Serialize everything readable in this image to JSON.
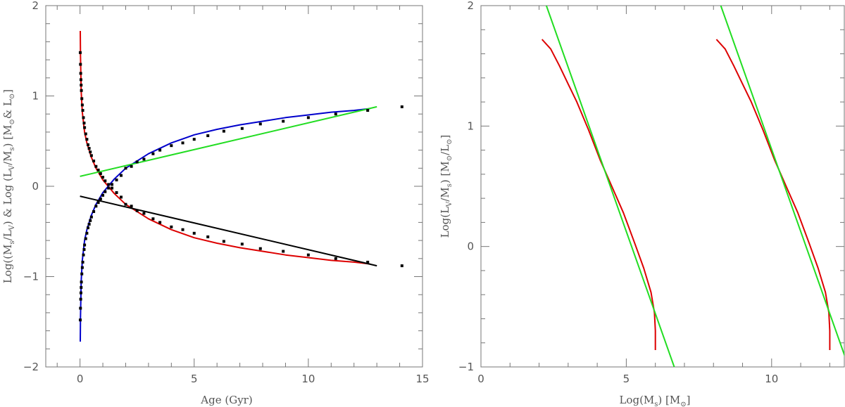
{
  "chart_data": [
    {
      "type": "line",
      "xlabel": "Age (Gyr)",
      "ylabel_parts": [
        "Log((M",
        "s",
        "/L",
        "V",
        ")   &   Log  (L",
        "V",
        "/M",
        "s",
        ")   [M",
        "⊙",
        "& L",
        "⊙",
        "]"
      ],
      "xlim": [
        -1.5,
        15
      ],
      "ylim": [
        -2,
        2
      ],
      "xticks": [
        0,
        5,
        10,
        15
      ],
      "yticks": [
        -2,
        -1,
        0,
        1,
        2
      ],
      "grid": false,
      "series": [
        {
          "color": "#dd0000",
          "x": [
            0.01,
            0.02,
            0.05,
            0.1,
            0.2,
            0.3,
            0.5,
            0.7,
            1.0,
            1.5,
            2.0,
            3.0,
            4.0,
            5.0,
            6.0,
            7.0,
            8.0,
            9.0,
            10.0,
            11.0,
            12.0,
            12.7
          ],
          "y": [
            1.72,
            1.45,
            1.05,
            0.82,
            0.6,
            0.48,
            0.32,
            0.2,
            0.07,
            -0.08,
            -0.2,
            -0.36,
            -0.48,
            -0.57,
            -0.63,
            -0.68,
            -0.72,
            -0.76,
            -0.79,
            -0.82,
            -0.84,
            -0.86
          ]
        },
        {
          "color": "#0000cc",
          "x": [
            0.01,
            0.02,
            0.05,
            0.1,
            0.2,
            0.3,
            0.5,
            0.7,
            1.0,
            1.5,
            2.0,
            3.0,
            4.0,
            5.0,
            6.0,
            7.0,
            8.0,
            9.0,
            10.0,
            11.0,
            12.0,
            12.7
          ],
          "y": [
            -1.72,
            -1.45,
            -1.05,
            -0.82,
            -0.6,
            -0.48,
            -0.32,
            -0.2,
            -0.07,
            0.08,
            0.2,
            0.36,
            0.48,
            0.57,
            0.63,
            0.68,
            0.72,
            0.76,
            0.79,
            0.82,
            0.84,
            0.86
          ]
        },
        {
          "color": "#22dd22",
          "x": [
            0.0,
            13.0
          ],
          "y": [
            0.11,
            0.88
          ]
        },
        {
          "color": "#000000",
          "x": [
            0.0,
            13.0
          ],
          "y": [
            -0.11,
            -0.88
          ]
        }
      ],
      "points": {
        "color": "#000000",
        "x": [
          0.01,
          0.02,
          0.03,
          0.04,
          0.05,
          0.06,
          0.08,
          0.1,
          0.12,
          0.15,
          0.18,
          0.2,
          0.25,
          0.3,
          0.35,
          0.4,
          0.45,
          0.5,
          0.6,
          0.7,
          0.8,
          0.9,
          1.0,
          1.1,
          1.25,
          1.4,
          1.6,
          1.8,
          2.0,
          2.25,
          2.5,
          2.8,
          3.2,
          3.5,
          4.0,
          4.5,
          5.0,
          5.6,
          6.3,
          7.1,
          7.9,
          8.9,
          10.0,
          11.2,
          12.6,
          14.1,
          0.01,
          0.02,
          0.03,
          0.04,
          0.05,
          0.06,
          0.08,
          0.1,
          0.12,
          0.15,
          0.18,
          0.2,
          0.25,
          0.3,
          0.35,
          0.4,
          0.45,
          0.5,
          0.6,
          0.7,
          0.8,
          0.9,
          1.0,
          1.1,
          1.25,
          1.4,
          1.6,
          1.8,
          2.0,
          2.25,
          2.5,
          2.8,
          3.2,
          3.5,
          4.0,
          4.5,
          5.0,
          5.6,
          6.3,
          7.1,
          7.9,
          8.9,
          10.0,
          11.2,
          12.6,
          14.1
        ],
        "y": [
          1.48,
          1.35,
          1.25,
          1.18,
          1.12,
          1.06,
          0.97,
          0.9,
          0.84,
          0.76,
          0.7,
          0.65,
          0.58,
          0.52,
          0.46,
          0.42,
          0.38,
          0.34,
          0.28,
          0.22,
          0.18,
          0.14,
          0.1,
          0.06,
          0.02,
          -0.02,
          -0.07,
          -0.12,
          -0.2,
          -0.22,
          -0.27,
          -0.3,
          -0.36,
          -0.4,
          -0.45,
          -0.48,
          -0.52,
          -0.56,
          -0.61,
          -0.64,
          -0.69,
          -0.72,
          -0.76,
          -0.8,
          -0.84,
          -0.88,
          -1.48,
          -1.35,
          -1.25,
          -1.18,
          -1.12,
          -1.06,
          -0.97,
          -0.9,
          -0.84,
          -0.76,
          -0.7,
          -0.65,
          -0.58,
          -0.52,
          -0.46,
          -0.42,
          -0.38,
          -0.34,
          -0.28,
          -0.22,
          -0.18,
          -0.14,
          -0.1,
          -0.06,
          -0.02,
          0.02,
          0.07,
          0.12,
          0.2,
          0.22,
          0.27,
          0.3,
          0.36,
          0.4,
          0.45,
          0.48,
          0.52,
          0.56,
          0.61,
          0.64,
          0.69,
          0.72,
          0.76,
          0.8,
          0.84,
          0.88
        ]
      }
    },
    {
      "type": "line",
      "xlabel_parts": [
        "Log(M",
        "s",
        ")   [M",
        "⊙",
        "]"
      ],
      "ylabel_parts": [
        "Log(L",
        "V",
        "/M",
        "s",
        ")   [M",
        "⊙",
        "/L",
        "⊙",
        "]"
      ],
      "xlim": [
        0,
        12.5
      ],
      "ylim": [
        -1,
        2
      ],
      "xticks": [
        0,
        5,
        10
      ],
      "yticks": [
        -1,
        0,
        1,
        2
      ],
      "grid": false,
      "series": [
        {
          "color": "#dd0000",
          "x": [
            2.1,
            2.4,
            2.7,
            3.0,
            3.3,
            3.7,
            4.1,
            4.5,
            4.9,
            5.3,
            5.6,
            5.85,
            5.97,
            6.0,
            6.0
          ],
          "y": [
            1.72,
            1.64,
            1.5,
            1.35,
            1.2,
            0.97,
            0.72,
            0.5,
            0.28,
            0.02,
            -0.18,
            -0.38,
            -0.55,
            -0.7,
            -0.86
          ]
        },
        {
          "color": "#dd0000",
          "x": [
            8.1,
            8.4,
            8.7,
            9.0,
            9.3,
            9.7,
            10.1,
            10.5,
            10.9,
            11.3,
            11.6,
            11.85,
            11.97,
            12.0,
            12.0
          ],
          "y": [
            1.72,
            1.64,
            1.5,
            1.35,
            1.2,
            0.97,
            0.72,
            0.5,
            0.28,
            0.02,
            -0.18,
            -0.38,
            -0.55,
            -0.7,
            -0.86
          ]
        },
        {
          "color": "#22dd22",
          "x": [
            2.25,
            6.65
          ],
          "y": [
            2.0,
            -1.0
          ]
        },
        {
          "color": "#22dd22",
          "x": [
            8.25,
            12.65
          ],
          "y": [
            2.0,
            -1.0
          ]
        }
      ]
    }
  ]
}
